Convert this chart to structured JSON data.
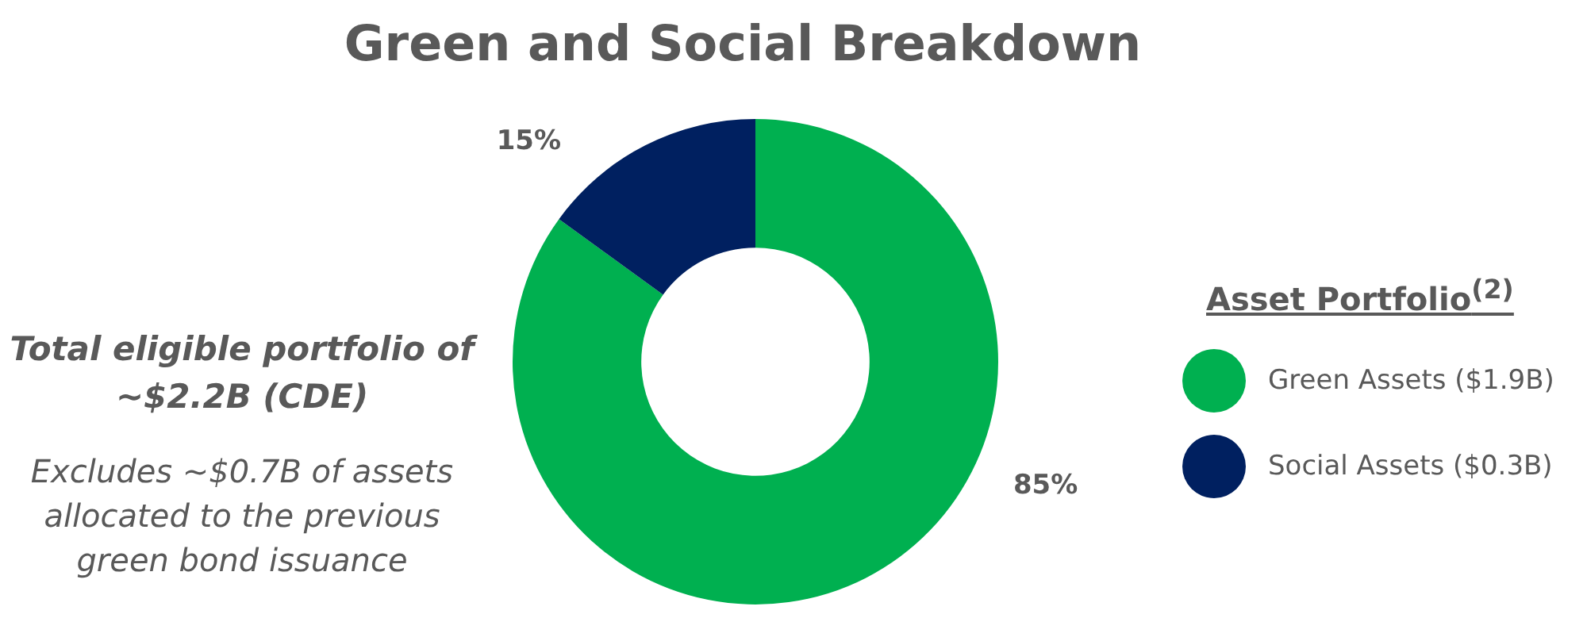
{
  "chart_data": {
    "type": "donut",
    "title": "Green and Social Breakdown",
    "categories": [
      "Green Assets ($1.9B)",
      "Social Assets ($0.3B)"
    ],
    "values": [
      85,
      15
    ],
    "colors": [
      "#00b050",
      "#002060"
    ],
    "value_labels": [
      "85%",
      "15%"
    ],
    "legend": "right",
    "legend_title": "Asset Portfolio$^{(2)}$",
    "annotations": [
      "Total eligible portfolio of ~$2.2B (CDE)",
      "Excludes ~$0.7B of assets allocated to the previous green bond issuance"
    ]
  }
}
